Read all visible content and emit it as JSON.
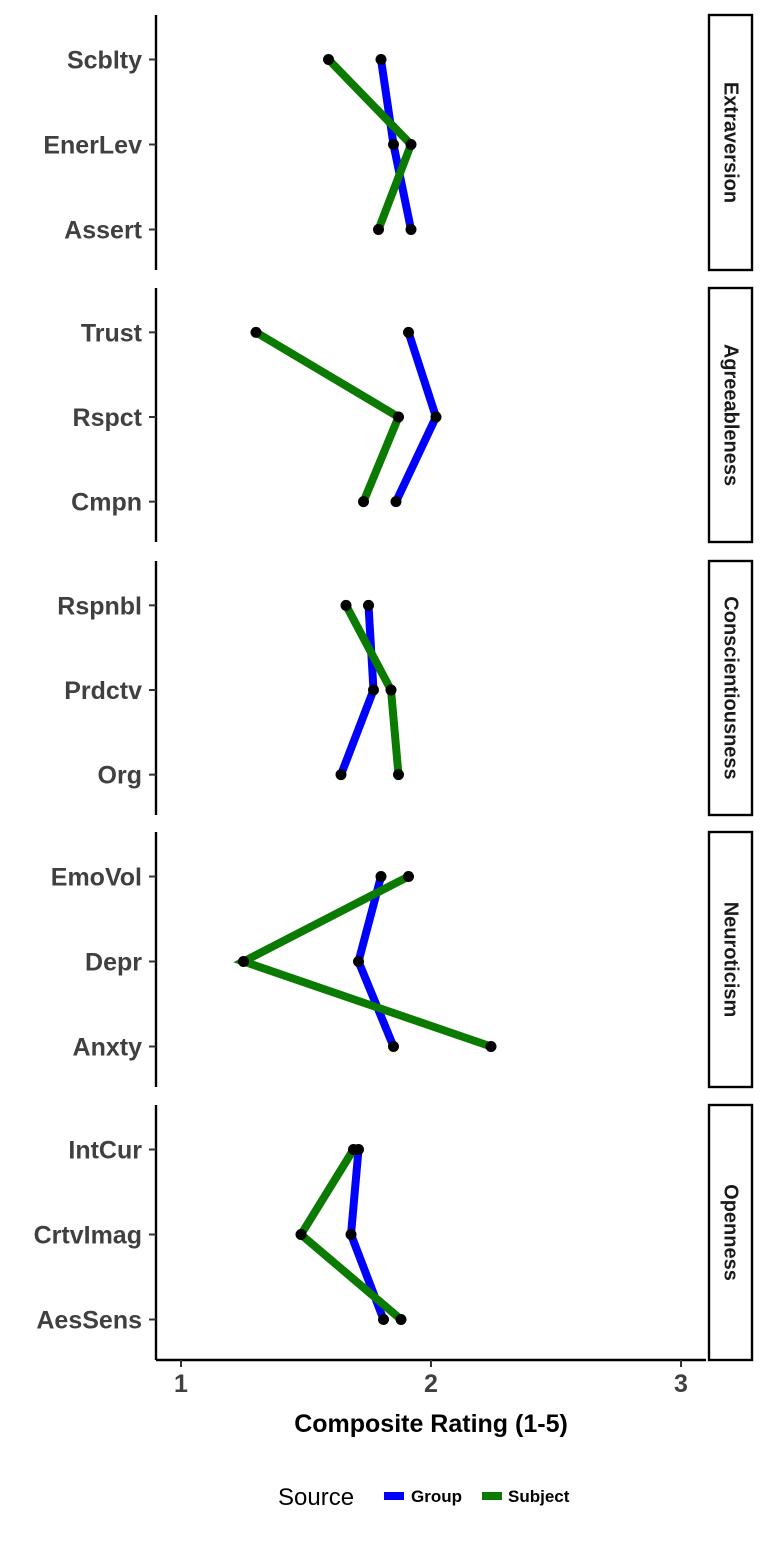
{
  "chart_data": {
    "type": "line",
    "orientation": "horizontal-facets",
    "xlabel": "Composite Rating (1-5)",
    "xlim": [
      0.9,
      3.1
    ],
    "xticks": [
      1,
      2,
      3
    ],
    "grid": false,
    "legend": {
      "title": "Source",
      "position": "bottom",
      "entries": [
        {
          "name": "Group",
          "color": "#0000ff"
        },
        {
          "name": "Subject",
          "color": "#0a7a00"
        }
      ]
    },
    "point_color": "#000000",
    "facets": [
      {
        "name": "Extraversion",
        "categories": [
          "Scblty",
          "EnerLev",
          "Assert"
        ],
        "series": [
          {
            "name": "Group",
            "values": [
              1.8,
              1.85,
              1.92
            ]
          },
          {
            "name": "Subject",
            "values": [
              1.59,
              1.92,
              1.79
            ]
          }
        ]
      },
      {
        "name": "Agreeableness",
        "categories": [
          "Trust",
          "Rspct",
          "Cmpn"
        ],
        "series": [
          {
            "name": "Group",
            "values": [
              1.91,
              2.02,
              1.86
            ]
          },
          {
            "name": "Subject",
            "values": [
              1.3,
              1.87,
              1.73
            ]
          }
        ]
      },
      {
        "name": "Conscientiousness",
        "categories": [
          "Rspnbl",
          "Prdctv",
          "Org"
        ],
        "series": [
          {
            "name": "Group",
            "values": [
              1.75,
              1.77,
              1.64
            ]
          },
          {
            "name": "Subject",
            "values": [
              1.66,
              1.84,
              1.87
            ]
          }
        ]
      },
      {
        "name": "Neuroticism",
        "categories": [
          "EmoVol",
          "Depr",
          "Anxty"
        ],
        "series": [
          {
            "name": "Group",
            "values": [
              1.8,
              1.71,
              1.85
            ]
          },
          {
            "name": "Subject",
            "values": [
              1.91,
              1.25,
              2.24
            ]
          }
        ]
      },
      {
        "name": "Openness",
        "categories": [
          "IntCur",
          "CrtvImag",
          "AesSens"
        ],
        "series": [
          {
            "name": "Group",
            "values": [
              1.71,
              1.68,
              1.81
            ]
          },
          {
            "name": "Subject",
            "values": [
              1.69,
              1.48,
              1.88
            ]
          }
        ]
      }
    ]
  }
}
